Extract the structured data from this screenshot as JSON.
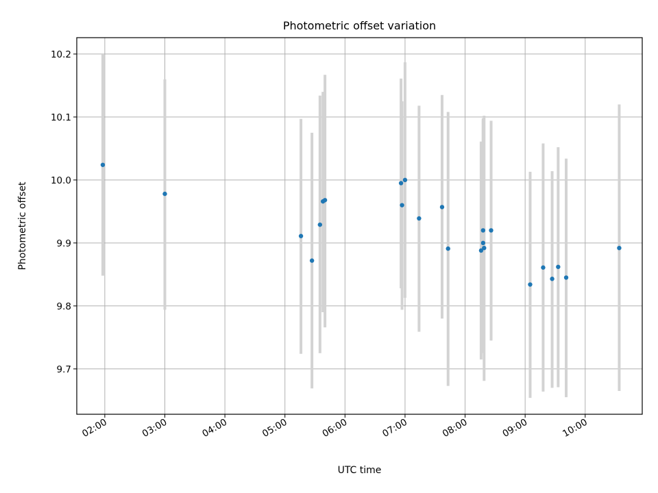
{
  "chart_data": {
    "type": "scatter",
    "title": "Photometric offset variation",
    "xlabel": "UTC time",
    "ylabel": "Photometric offset",
    "xlim": [
      "01:32",
      "10:57"
    ],
    "ylim": [
      9.628,
      10.226
    ],
    "x_ticks": [
      "02:00",
      "03:00",
      "04:00",
      "05:00",
      "06:00",
      "07:00",
      "08:00",
      "09:00",
      "10:00"
    ],
    "y_ticks": [
      9.7,
      9.8,
      9.9,
      10.0,
      10.1,
      10.2
    ],
    "grid": true,
    "marker_color": "#1f77b4",
    "errorbar_color": "#d3d3d3",
    "series": [
      {
        "points": [
          {
            "t": "01:58",
            "y": 10.024,
            "lo": 9.848,
            "hi": 10.2
          },
          {
            "t": "03:00",
            "y": 9.978,
            "lo": 9.794,
            "hi": 10.16
          },
          {
            "t": "05:16",
            "y": 9.911,
            "lo": 9.724,
            "hi": 10.097
          },
          {
            "t": "05:27",
            "y": 9.872,
            "lo": 9.669,
            "hi": 10.075
          },
          {
            "t": "05:35",
            "y": 9.929,
            "lo": 9.725,
            "hi": 10.134
          },
          {
            "t": "05:38",
            "y": 9.966,
            "lo": 9.79,
            "hi": 10.14
          },
          {
            "t": "05:40",
            "y": 9.968,
            "lo": 9.766,
            "hi": 10.167
          },
          {
            "t": "06:56",
            "y": 9.995,
            "lo": 9.828,
            "hi": 10.161
          },
          {
            "t": "06:57",
            "y": 9.96,
            "lo": 9.794,
            "hi": 10.125
          },
          {
            "t": "07:00",
            "y": 10.0,
            "lo": 9.813,
            "hi": 10.187
          },
          {
            "t": "07:14",
            "y": 9.939,
            "lo": 9.759,
            "hi": 10.118
          },
          {
            "t": "07:37",
            "y": 9.957,
            "lo": 9.78,
            "hi": 10.135
          },
          {
            "t": "07:43",
            "y": 9.891,
            "lo": 9.673,
            "hi": 10.108
          },
          {
            "t": "08:16",
            "y": 9.888,
            "lo": 9.715,
            "hi": 10.061
          },
          {
            "t": "08:18",
            "y": 9.92,
            "lo": 9.738,
            "hi": 10.095
          },
          {
            "t": "08:18",
            "y": 9.9,
            "lo": 9.725,
            "hi": 10.098
          },
          {
            "t": "08:19",
            "y": 9.892,
            "lo": 9.681,
            "hi": 10.102
          },
          {
            "t": "08:26",
            "y": 9.92,
            "lo": 9.745,
            "hi": 10.094
          },
          {
            "t": "09:05",
            "y": 9.834,
            "lo": 9.654,
            "hi": 10.013
          },
          {
            "t": "09:18",
            "y": 9.861,
            "lo": 9.664,
            "hi": 10.058
          },
          {
            "t": "09:27",
            "y": 9.843,
            "lo": 9.67,
            "hi": 10.014
          },
          {
            "t": "09:33",
            "y": 9.862,
            "lo": 9.671,
            "hi": 10.052
          },
          {
            "t": "09:41",
            "y": 9.845,
            "lo": 9.655,
            "hi": 10.034
          },
          {
            "t": "10:34",
            "y": 9.892,
            "lo": 9.665,
            "hi": 10.12
          }
        ]
      }
    ]
  }
}
